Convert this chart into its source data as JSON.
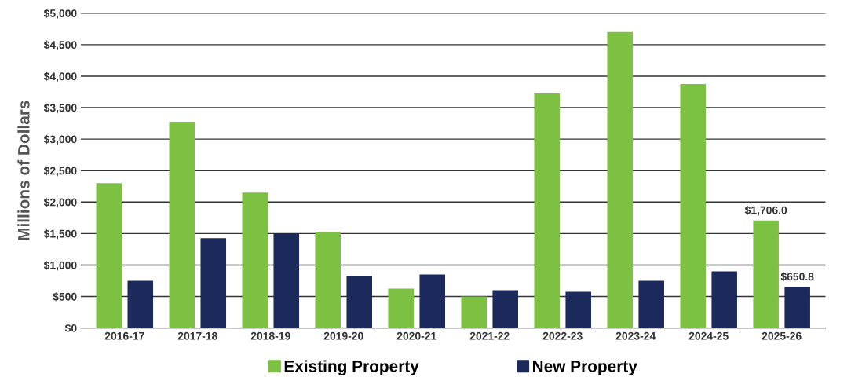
{
  "chart_data": {
    "type": "bar",
    "ylabel": "Millions of Dollars",
    "categories": [
      "2016-17",
      "2017-18",
      "2018-19",
      "2019-20",
      "2020-21",
      "2021-22",
      "2022-23",
      "2023-24",
      "2024-25",
      "2025-26"
    ],
    "series": [
      {
        "name": "Existing Property",
        "color": "#7dc142",
        "values": [
          2300,
          3275,
          2150,
          1525,
          625,
          500,
          3725,
          4700,
          3875,
          1706.0
        ],
        "value_labels": [
          null,
          null,
          null,
          null,
          null,
          null,
          null,
          null,
          null,
          "$1,706.0"
        ]
      },
      {
        "name": "New Property",
        "color": "#1b2a5a",
        "values": [
          750,
          1425,
          1500,
          825,
          850,
          600,
          575,
          750,
          900,
          650.8
        ],
        "value_labels": [
          null,
          null,
          null,
          null,
          null,
          null,
          null,
          null,
          null,
          "$650.8"
        ]
      }
    ],
    "ylim": [
      0,
      5000
    ],
    "yticks": [
      {
        "value": 0,
        "label": "$0"
      },
      {
        "value": 500,
        "label": "$500"
      },
      {
        "value": 1000,
        "label": "$1,000"
      },
      {
        "value": 1500,
        "label": "$1,500"
      },
      {
        "value": 2000,
        "label": "$2,000"
      },
      {
        "value": 2500,
        "label": "$2,500"
      },
      {
        "value": 3000,
        "label": "$3,000"
      },
      {
        "value": 3500,
        "label": "$3,500"
      },
      {
        "value": 4000,
        "label": "$4,000"
      },
      {
        "value": 4500,
        "label": "$4,500"
      },
      {
        "value": 5000,
        "label": "$5,000"
      }
    ],
    "grid": "y",
    "legend": "bottom"
  }
}
